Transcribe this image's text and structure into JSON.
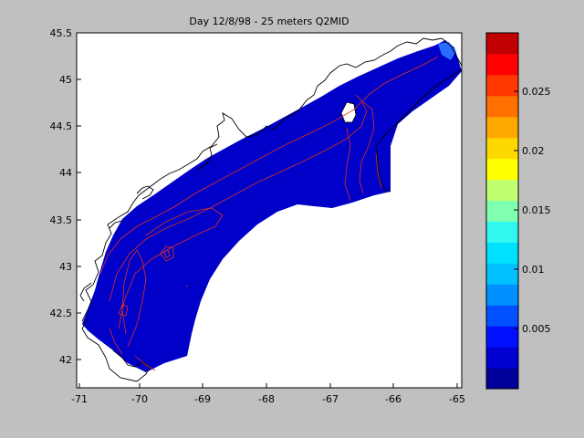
{
  "figure": {
    "title": "Day 12/8/98 - 25 meters Q2MID",
    "background": "#c0c0c0"
  },
  "map": {
    "x_ticks": [
      "-71",
      "-70",
      "-69",
      "-68",
      "-67",
      "-66",
      "-65"
    ],
    "y_ticks": [
      "45.5",
      "45",
      "44.5",
      "44",
      "43.5",
      "43",
      "42.5",
      "42"
    ],
    "x_range": [
      -71,
      -65
    ],
    "y_range": [
      41.7,
      45.5
    ],
    "field_color": "#0000c8",
    "contour_color": "#e03020",
    "coast_color": "#000000"
  },
  "colorbar": {
    "tick_labels": [
      "0.025",
      "0.02",
      "0.015",
      "0.01",
      "0.005"
    ],
    "range": [
      0,
      0.03
    ],
    "colors": [
      "#00009a",
      "#0000d0",
      "#0010ff",
      "#0050ff",
      "#0090ff",
      "#00c0ff",
      "#00e0ff",
      "#30f8f0",
      "#80ffb0",
      "#c0ff70",
      "#ffff00",
      "#ffd800",
      "#ffa800",
      "#ff7000",
      "#ff3800",
      "#ff0000",
      "#c00000"
    ]
  }
}
